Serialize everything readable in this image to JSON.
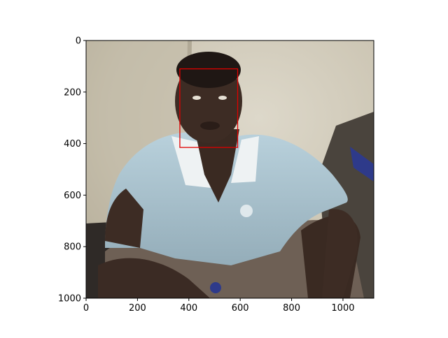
{
  "figure": {
    "image_description_colors": {
      "wall": "#cfc9b8",
      "shirt": "#a9c3cf",
      "skin": "#3a2a22",
      "pants": "#6e6055",
      "floor": "#5a4d44"
    },
    "box_color": "#e00000"
  },
  "chart_data": {
    "type": "image",
    "x_ticks": [
      "0",
      "200",
      "400",
      "600",
      "800",
      "1000"
    ],
    "y_ticks": [
      "0",
      "200",
      "400",
      "600",
      "800",
      "1000"
    ],
    "x_tick_values": [
      0,
      200,
      400,
      600,
      800,
      1000
    ],
    "y_tick_values": [
      0,
      200,
      400,
      600,
      800,
      1000
    ],
    "xlim": [
      0,
      1120
    ],
    "ylim": [
      1000,
      0
    ],
    "bounding_box": {
      "x_min": 365,
      "y_min": 110,
      "x_max": 590,
      "y_max": 415
    }
  }
}
